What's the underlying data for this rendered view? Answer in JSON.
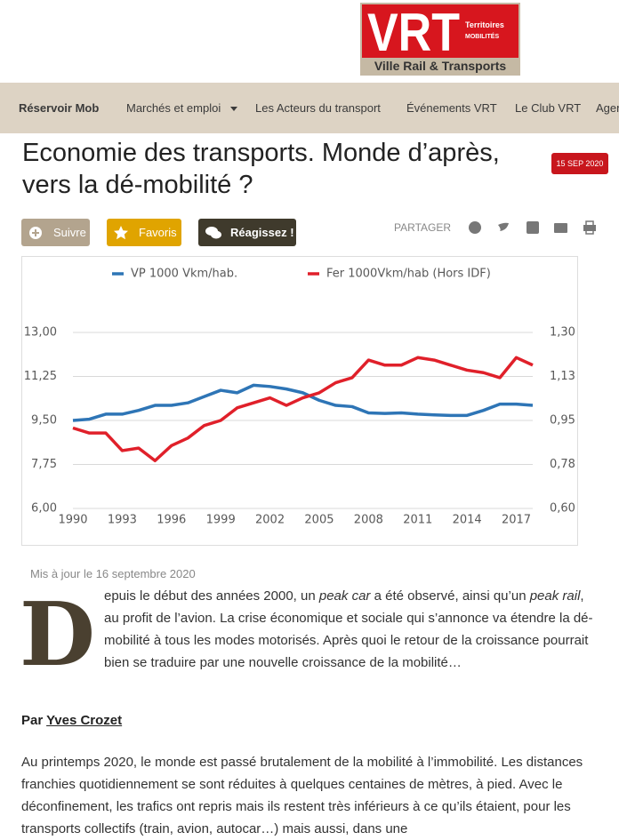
{
  "logo": {
    "brand": "VRT",
    "tagline_1": "Territoires",
    "tagline_2": "MOBILITÉS",
    "name": "Ville Rail & Transports"
  },
  "nav": [
    "Réservoir Mob",
    "Marchés et emploi",
    "Les Acteurs du transport",
    "Événements VRT",
    "Le Club VRT",
    "Agenda"
  ],
  "article": {
    "title_1": "Economie des transports. Monde d’après,",
    "title_2": "vers la dé-mobilité ?",
    "date": "15 SEP 2020",
    "buttons": [
      "Suivre",
      "Favoris",
      "Réagissez !"
    ],
    "share_label": "PARTAGER",
    "updated": "Mis à jour le 16 septembre 2020",
    "intro": {
      "drop_cap": "D",
      "parts": [
        "epuis le début des années 2000, un ",
        "peak car",
        " a été observé, ainsi qu’un ",
        "peak rail",
        ", au profit de l’avion. La crise économique et sociale qui s’annonce va étendre la dé-mobilité à tous les modes motorisés. Après quoi le retour de la croissance pourrait bien se traduire par une nouvelle croissance de la mobilité…"
      ]
    },
    "byline": {
      "prefix": "Par",
      "author": "Yves Crozet"
    },
    "paragraph": "Au printemps 2020, le monde est passé brutalement de la mobilité à l’immobilité. Les distances franchies quotidiennement se sont réduites à quelques centaines de mètres, à pied. Avec le déconfinement, les trafics ont repris mais ils restent très inférieurs à ce qu’ils étaient, pour les transports collectifs (train, avion, autocar…) mais aussi, dans une"
  },
  "chart_data": {
    "type": "line",
    "legend": "top",
    "grid": true,
    "x": [
      1990,
      1991,
      1992,
      1993,
      1994,
      1995,
      1996,
      1997,
      1998,
      1999,
      2000,
      2001,
      2002,
      2003,
      2004,
      2005,
      2006,
      2007,
      2008,
      2009,
      2010,
      2011,
      2012,
      2013,
      2014,
      2015,
      2016,
      2017,
      2018
    ],
    "xlim": [
      1990,
      2018
    ],
    "xticks": [
      1990,
      1993,
      1996,
      1999,
      2002,
      2005,
      2008,
      2011,
      2014,
      2017
    ],
    "ylim": [
      6,
      13
    ],
    "yticks": [
      {
        "value": 6,
        "label": "6,00"
      },
      {
        "value": 7.75,
        "label": "7,75"
      },
      {
        "value": 9.5,
        "label": "9,50"
      },
      {
        "value": 11.25,
        "label": "11,25"
      },
      {
        "value": 13,
        "label": "13,00"
      }
    ],
    "y2lim": [
      0.6,
      1.3
    ],
    "y2ticks": [
      {
        "value": 0.6,
        "label": "0,60"
      },
      {
        "value": 0.775,
        "label": "0,78"
      },
      {
        "value": 0.95,
        "label": "0,95"
      },
      {
        "value": 1.125,
        "label": "1,13"
      },
      {
        "value": 1.3,
        "label": "1,30"
      }
    ],
    "series": [
      {
        "name": "VP 1000 Vkm/hab.",
        "color": "#2e75b6",
        "values": [
          9.5,
          9.55,
          9.75,
          9.75,
          9.9,
          10.1,
          10.1,
          10.2,
          10.45,
          10.7,
          10.6,
          10.9,
          10.85,
          10.75,
          10.6,
          10.3,
          10.1,
          10.05,
          9.8,
          9.78,
          9.8,
          9.75,
          9.72,
          9.7,
          9.7,
          9.9,
          10.15,
          10.15,
          10.1
        ]
      },
      {
        "name": "Fer 1000Vkm/hab (Hors IDF)",
        "color": "#e0202a",
        "axis": "y2",
        "values": [
          0.92,
          0.9,
          0.9,
          0.83,
          0.84,
          0.79,
          0.85,
          0.88,
          0.93,
          0.95,
          1.0,
          1.02,
          1.04,
          1.01,
          1.04,
          1.06,
          1.1,
          1.12,
          1.19,
          1.17,
          1.17,
          1.2,
          1.19,
          1.17,
          1.15,
          1.14,
          1.12,
          1.2,
          1.17
        ]
      }
    ]
  }
}
